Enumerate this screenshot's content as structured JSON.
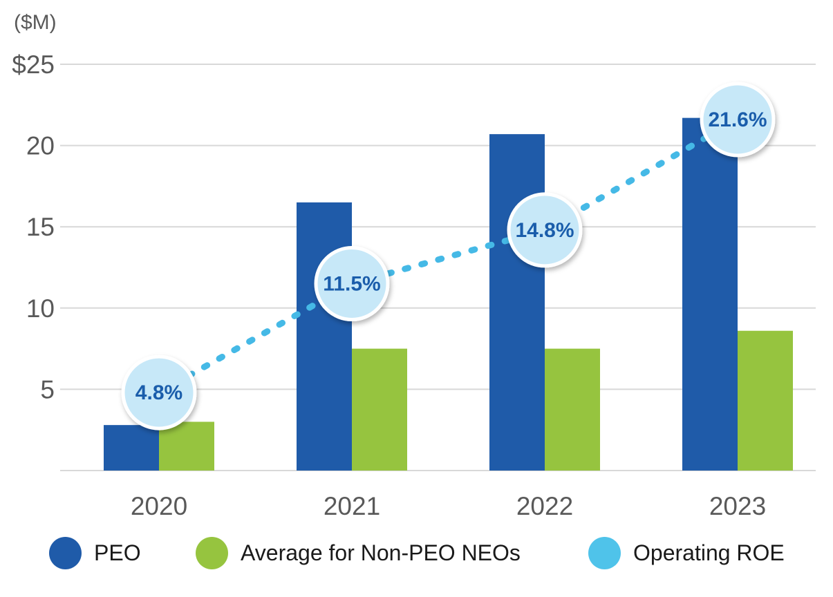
{
  "chart_data": {
    "type": "bar-line-combo",
    "title": "",
    "unit_label": "($M)",
    "categories": [
      "2020",
      "2021",
      "2022",
      "2023"
    ],
    "series": [
      {
        "name": "PEO",
        "type": "bar",
        "color": "#1f5ba9",
        "values": [
          2.8,
          16.5,
          20.7,
          21.7
        ]
      },
      {
        "name": "Average for Non-PEO NEOs",
        "type": "bar",
        "color": "#96c43f",
        "values": [
          3.0,
          7.5,
          7.5,
          8.6
        ]
      },
      {
        "name": "Operating ROE",
        "type": "line",
        "color": "#45b9e6",
        "line_style": "dotted",
        "values": [
          4.8,
          11.5,
          14.8,
          21.6
        ],
        "point_labels": [
          "4.8%",
          "11.5%",
          "14.8%",
          "21.6%"
        ],
        "marker": {
          "fill": "#c7e8f8",
          "border": "#ffffff",
          "text_color": "#1a5dab"
        }
      }
    ],
    "yticks": [
      {
        "label": "$25",
        "value": 25
      },
      {
        "label": "20",
        "value": 20
      },
      {
        "label": "15",
        "value": 15
      },
      {
        "label": "10",
        "value": 10
      },
      {
        "label": "5",
        "value": 5
      }
    ],
    "ylim": [
      0,
      25
    ],
    "grid": true,
    "grid_color": "#d8d8d8",
    "axis_text_color": "#595959",
    "legend_position": "bottom"
  },
  "legend": {
    "items": [
      {
        "label": "PEO",
        "color": "#1f5ba9"
      },
      {
        "label": "Average for Non-PEO NEOs",
        "color": "#96c43f"
      },
      {
        "label": "Operating ROE",
        "color": "#4fc3ea"
      }
    ]
  }
}
